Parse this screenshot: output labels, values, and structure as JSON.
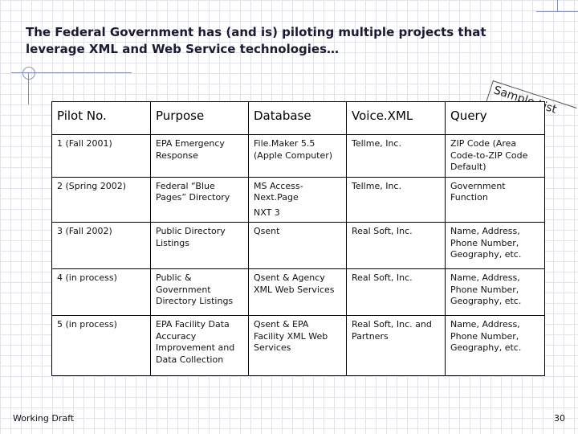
{
  "slide": {
    "title": "The Federal Government has (and is) piloting multiple projects that leverage XML and Web Service technologies…",
    "annotation": "Sample List",
    "footer": "Working Draft",
    "page_number": "30"
  },
  "table": {
    "headers": [
      "Pilot No.",
      "Purpose",
      "Database",
      "Voice.XML",
      "Query"
    ],
    "rows": [
      [
        "1 (Fall 2001)",
        "EPA Emergency Response",
        "File.Maker 5.5 (Apple Computer)",
        "Tellme, Inc.",
        "ZIP Code (Area Code-to-ZIP Code Default)"
      ],
      [
        "2 (Spring 2002)",
        "Federal “Blue Pages” Directory",
        "MS Access-Next.Page",
        "Tellme, Inc.",
        "Government Function"
      ],
      [
        "3 (Fall 2002)",
        "Public Directory Listings",
        "Qsent",
        "Real Soft, Inc.",
        "Name, Address, Phone Number, Geography, etc."
      ],
      [
        "4 (in process)",
        "Public & Government Directory Listings",
        "Qsent & Agency XML Web Services",
        "Real Soft, Inc.",
        "Name, Address, Phone Number, Geography, etc."
      ],
      [
        "5 (in process)",
        "EPA Facility Data Accuracy Improvement and Data Collection",
        "Qsent & EPA Facility XML Web Services",
        "Real Soft, Inc. and Partners",
        "Name, Address, Phone Number, Geography, etc."
      ]
    ],
    "row2_database_extra": "NXT 3"
  }
}
